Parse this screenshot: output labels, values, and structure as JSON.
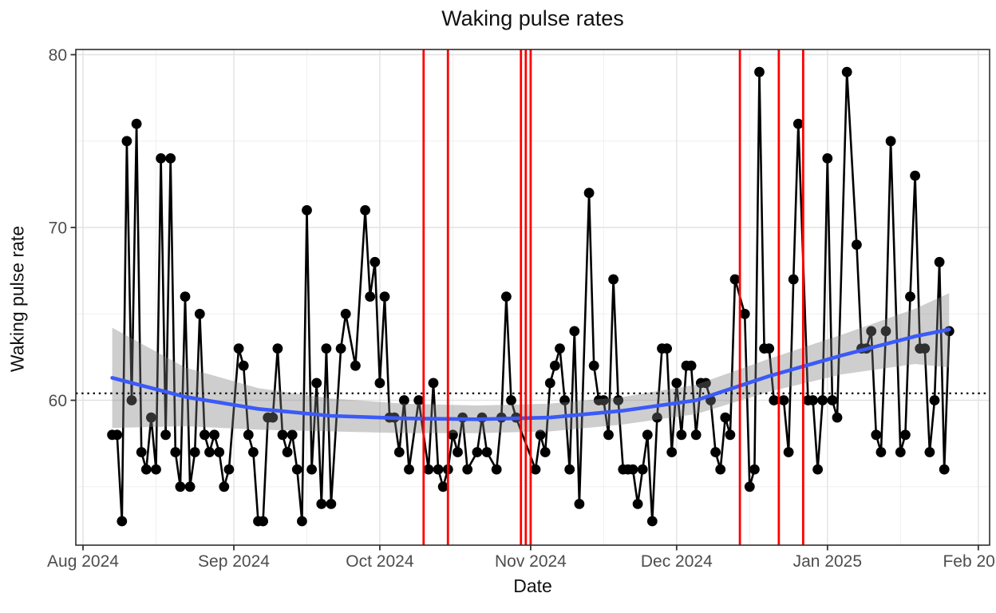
{
  "title": "Waking pulse rates",
  "axes": {
    "x": {
      "label": "Date",
      "ticks": [
        {
          "label": "Aug 2024",
          "date": "2024-08-01"
        },
        {
          "label": "Sep 2024",
          "date": "2024-09-01"
        },
        {
          "label": "Oct 2024",
          "date": "2024-10-01"
        },
        {
          "label": "Nov 2024",
          "date": "2024-11-01"
        },
        {
          "label": "Dec 2024",
          "date": "2024-12-01"
        },
        {
          "label": "Jan 2025",
          "date": "2025-01-01"
        },
        {
          "label": "Feb 2025",
          "date": "2025-02-01"
        }
      ],
      "minor_ticks": [
        "2024-08-16",
        "2024-09-16",
        "2024-10-16",
        "2024-11-16",
        "2024-12-16",
        "2025-01-16"
      ],
      "range": [
        "2024-07-30",
        "2025-02-03"
      ]
    },
    "y": {
      "label": "Waking pulse rate",
      "ticks": [
        {
          "label": "60",
          "value": 60
        },
        {
          "label": "70",
          "value": 70
        },
        {
          "label": "80",
          "value": 80
        }
      ],
      "minor_ticks": [
        55,
        65,
        75
      ],
      "range": [
        51.6,
        80.4
      ]
    }
  },
  "chart_data": {
    "type": "line",
    "title": "Waking pulse rates",
    "xlabel": "Date",
    "ylabel": "Waking pulse rate",
    "grid": true,
    "legend": false,
    "series": [
      {
        "name": "daily waking pulse rate",
        "color": "#000000",
        "points": [
          [
            "2024-08-07",
            58
          ],
          [
            "2024-08-08",
            58
          ],
          [
            "2024-08-09",
            53
          ],
          [
            "2024-08-10",
            75
          ],
          [
            "2024-08-11",
            60
          ],
          [
            "2024-08-12",
            76
          ],
          [
            "2024-08-13",
            57
          ],
          [
            "2024-08-14",
            56
          ],
          [
            "2024-08-15",
            59
          ],
          [
            "2024-08-16",
            56
          ],
          [
            "2024-08-17",
            74
          ],
          [
            "2024-08-18",
            58
          ],
          [
            "2024-08-19",
            74
          ],
          [
            "2024-08-20",
            57
          ],
          [
            "2024-08-21",
            55
          ],
          [
            "2024-08-22",
            66
          ],
          [
            "2024-08-23",
            55
          ],
          [
            "2024-08-24",
            57
          ],
          [
            "2024-08-25",
            65
          ],
          [
            "2024-08-26",
            58
          ],
          [
            "2024-08-27",
            57
          ],
          [
            "2024-08-28",
            58
          ],
          [
            "2024-08-29",
            57
          ],
          [
            "2024-08-30",
            55
          ],
          [
            "2024-08-31",
            56
          ],
          [
            "2024-09-02",
            63
          ],
          [
            "2024-09-03",
            62
          ],
          [
            "2024-09-04",
            58
          ],
          [
            "2024-09-05",
            57
          ],
          [
            "2024-09-06",
            53
          ],
          [
            "2024-09-07",
            53
          ],
          [
            "2024-09-08",
            59
          ],
          [
            "2024-09-09",
            59
          ],
          [
            "2024-09-10",
            63
          ],
          [
            "2024-09-11",
            58
          ],
          [
            "2024-09-12",
            57
          ],
          [
            "2024-09-13",
            58
          ],
          [
            "2024-09-14",
            56
          ],
          [
            "2024-09-15",
            53
          ],
          [
            "2024-09-16",
            71
          ],
          [
            "2024-09-17",
            56
          ],
          [
            "2024-09-18",
            61
          ],
          [
            "2024-09-19",
            54
          ],
          [
            "2024-09-20",
            63
          ],
          [
            "2024-09-21",
            54
          ],
          [
            "2024-09-23",
            63
          ],
          [
            "2024-09-24",
            65
          ],
          [
            "2024-09-26",
            62
          ],
          [
            "2024-09-28",
            71
          ],
          [
            "2024-09-29",
            66
          ],
          [
            "2024-09-30",
            68
          ],
          [
            "2024-10-01",
            61
          ],
          [
            "2024-10-02",
            66
          ],
          [
            "2024-10-03",
            59
          ],
          [
            "2024-10-04",
            59
          ],
          [
            "2024-10-05",
            57
          ],
          [
            "2024-10-06",
            60
          ],
          [
            "2024-10-07",
            56
          ],
          [
            "2024-10-09",
            60
          ],
          [
            "2024-10-11",
            56
          ],
          [
            "2024-10-12",
            61
          ],
          [
            "2024-10-13",
            56
          ],
          [
            "2024-10-14",
            55
          ],
          [
            "2024-10-15",
            56
          ],
          [
            "2024-10-16",
            58
          ],
          [
            "2024-10-17",
            57
          ],
          [
            "2024-10-18",
            59
          ],
          [
            "2024-10-19",
            56
          ],
          [
            "2024-10-21",
            57
          ],
          [
            "2024-10-22",
            59
          ],
          [
            "2024-10-23",
            57
          ],
          [
            "2024-10-25",
            56
          ],
          [
            "2024-10-26",
            59
          ],
          [
            "2024-10-27",
            66
          ],
          [
            "2024-10-28",
            60
          ],
          [
            "2024-10-29",
            59
          ],
          [
            "2024-11-02",
            56
          ],
          [
            "2024-11-03",
            58
          ],
          [
            "2024-11-04",
            57
          ],
          [
            "2024-11-05",
            61
          ],
          [
            "2024-11-06",
            62
          ],
          [
            "2024-11-07",
            63
          ],
          [
            "2024-11-08",
            60
          ],
          [
            "2024-11-09",
            56
          ],
          [
            "2024-11-10",
            64
          ],
          [
            "2024-11-11",
            54
          ],
          [
            "2024-11-13",
            72
          ],
          [
            "2024-11-14",
            62
          ],
          [
            "2024-11-15",
            60
          ],
          [
            "2024-11-16",
            60
          ],
          [
            "2024-11-17",
            58
          ],
          [
            "2024-11-18",
            67
          ],
          [
            "2024-11-19",
            60
          ],
          [
            "2024-11-20",
            56
          ],
          [
            "2024-11-21",
            56
          ],
          [
            "2024-11-22",
            56
          ],
          [
            "2024-11-23",
            54
          ],
          [
            "2024-11-24",
            56
          ],
          [
            "2024-11-25",
            58
          ],
          [
            "2024-11-26",
            53
          ],
          [
            "2024-11-27",
            59
          ],
          [
            "2024-11-28",
            63
          ],
          [
            "2024-11-29",
            63
          ],
          [
            "2024-11-30",
            57
          ],
          [
            "2024-12-01",
            61
          ],
          [
            "2024-12-02",
            58
          ],
          [
            "2024-12-03",
            62
          ],
          [
            "2024-12-04",
            62
          ],
          [
            "2024-12-05",
            58
          ],
          [
            "2024-12-06",
            61
          ],
          [
            "2024-12-07",
            61
          ],
          [
            "2024-12-08",
            60
          ],
          [
            "2024-12-09",
            57
          ],
          [
            "2024-12-10",
            56
          ],
          [
            "2024-12-11",
            59
          ],
          [
            "2024-12-12",
            58
          ],
          [
            "2024-12-13",
            67
          ],
          [
            "2024-12-15",
            65
          ],
          [
            "2024-12-16",
            55
          ],
          [
            "2024-12-17",
            56
          ],
          [
            "2024-12-18",
            79
          ],
          [
            "2024-12-19",
            63
          ],
          [
            "2024-12-20",
            63
          ],
          [
            "2024-12-21",
            60
          ],
          [
            "2024-12-23",
            60
          ],
          [
            "2024-12-24",
            57
          ],
          [
            "2024-12-25",
            67
          ],
          [
            "2024-12-26",
            76
          ],
          [
            "2024-12-28",
            60
          ],
          [
            "2024-12-29",
            60
          ],
          [
            "2024-12-30",
            56
          ],
          [
            "2024-12-31",
            60
          ],
          [
            "2025-01-01",
            74
          ],
          [
            "2025-01-02",
            60
          ],
          [
            "2025-01-03",
            59
          ],
          [
            "2025-01-05",
            79
          ],
          [
            "2025-01-07",
            69
          ],
          [
            "2025-01-08",
            63
          ],
          [
            "2025-01-09",
            63
          ],
          [
            "2025-01-10",
            64
          ],
          [
            "2025-01-11",
            58
          ],
          [
            "2025-01-12",
            57
          ],
          [
            "2025-01-13",
            64
          ],
          [
            "2025-01-14",
            75
          ],
          [
            "2025-01-16",
            57
          ],
          [
            "2025-01-17",
            58
          ],
          [
            "2025-01-18",
            66
          ],
          [
            "2025-01-19",
            73
          ],
          [
            "2025-01-20",
            63
          ],
          [
            "2025-01-21",
            63
          ],
          [
            "2025-01-22",
            57
          ],
          [
            "2025-01-23",
            60
          ],
          [
            "2025-01-24",
            68
          ],
          [
            "2025-01-25",
            56
          ],
          [
            "2025-01-26",
            64
          ]
        ]
      }
    ],
    "smooth": {
      "name": "loess trend with confidence ribbon",
      "color": "#3b5af7",
      "ribbon_color": "rgba(125,125,125,0.38)",
      "points": [
        [
          "2024-08-07",
          61.3,
          58.4,
          64.2
        ],
        [
          "2024-08-22",
          60.2,
          58.5,
          61.9
        ],
        [
          "2024-09-06",
          59.5,
          58.3,
          60.7
        ],
        [
          "2024-09-21",
          59.1,
          58.2,
          60.1
        ],
        [
          "2024-10-06",
          58.95,
          58.1,
          59.8
        ],
        [
          "2024-10-21",
          58.9,
          58.1,
          59.7
        ],
        [
          "2024-11-05",
          59.0,
          58.2,
          59.8
        ],
        [
          "2024-11-20",
          59.4,
          58.6,
          60.2
        ],
        [
          "2024-12-05",
          60.0,
          59.2,
          60.9
        ],
        [
          "2024-12-20",
          61.4,
          60.5,
          62.4
        ],
        [
          "2025-01-04",
          62.6,
          61.5,
          63.8
        ],
        [
          "2025-01-19",
          63.7,
          62.1,
          65.3
        ],
        [
          "2025-01-26",
          64.1,
          61.9,
          66.2
        ]
      ]
    },
    "reference_lines": {
      "dotted_hline_value": 60.4,
      "red_vline_dates": [
        "2024-10-10",
        "2024-10-15",
        "2024-10-30",
        "2024-10-31",
        "2024-11-01",
        "2024-12-14",
        "2024-12-22",
        "2024-12-27"
      ]
    }
  },
  "style": {
    "point_color": "#000000",
    "line_color": "#000000",
    "smooth_color": "#3b5af7",
    "ribbon_color": "rgba(125,125,125,0.38)",
    "red_line_color": "#ff0000",
    "dotted_line_color": "#111111",
    "grid_major_color": "#e2e2e2",
    "grid_minor_color": "#efefef",
    "panel_border_color": "#2e2e2e",
    "tick_color": "#333333",
    "tick_label_color": "#4d4d4d",
    "background": "#ffffff"
  }
}
